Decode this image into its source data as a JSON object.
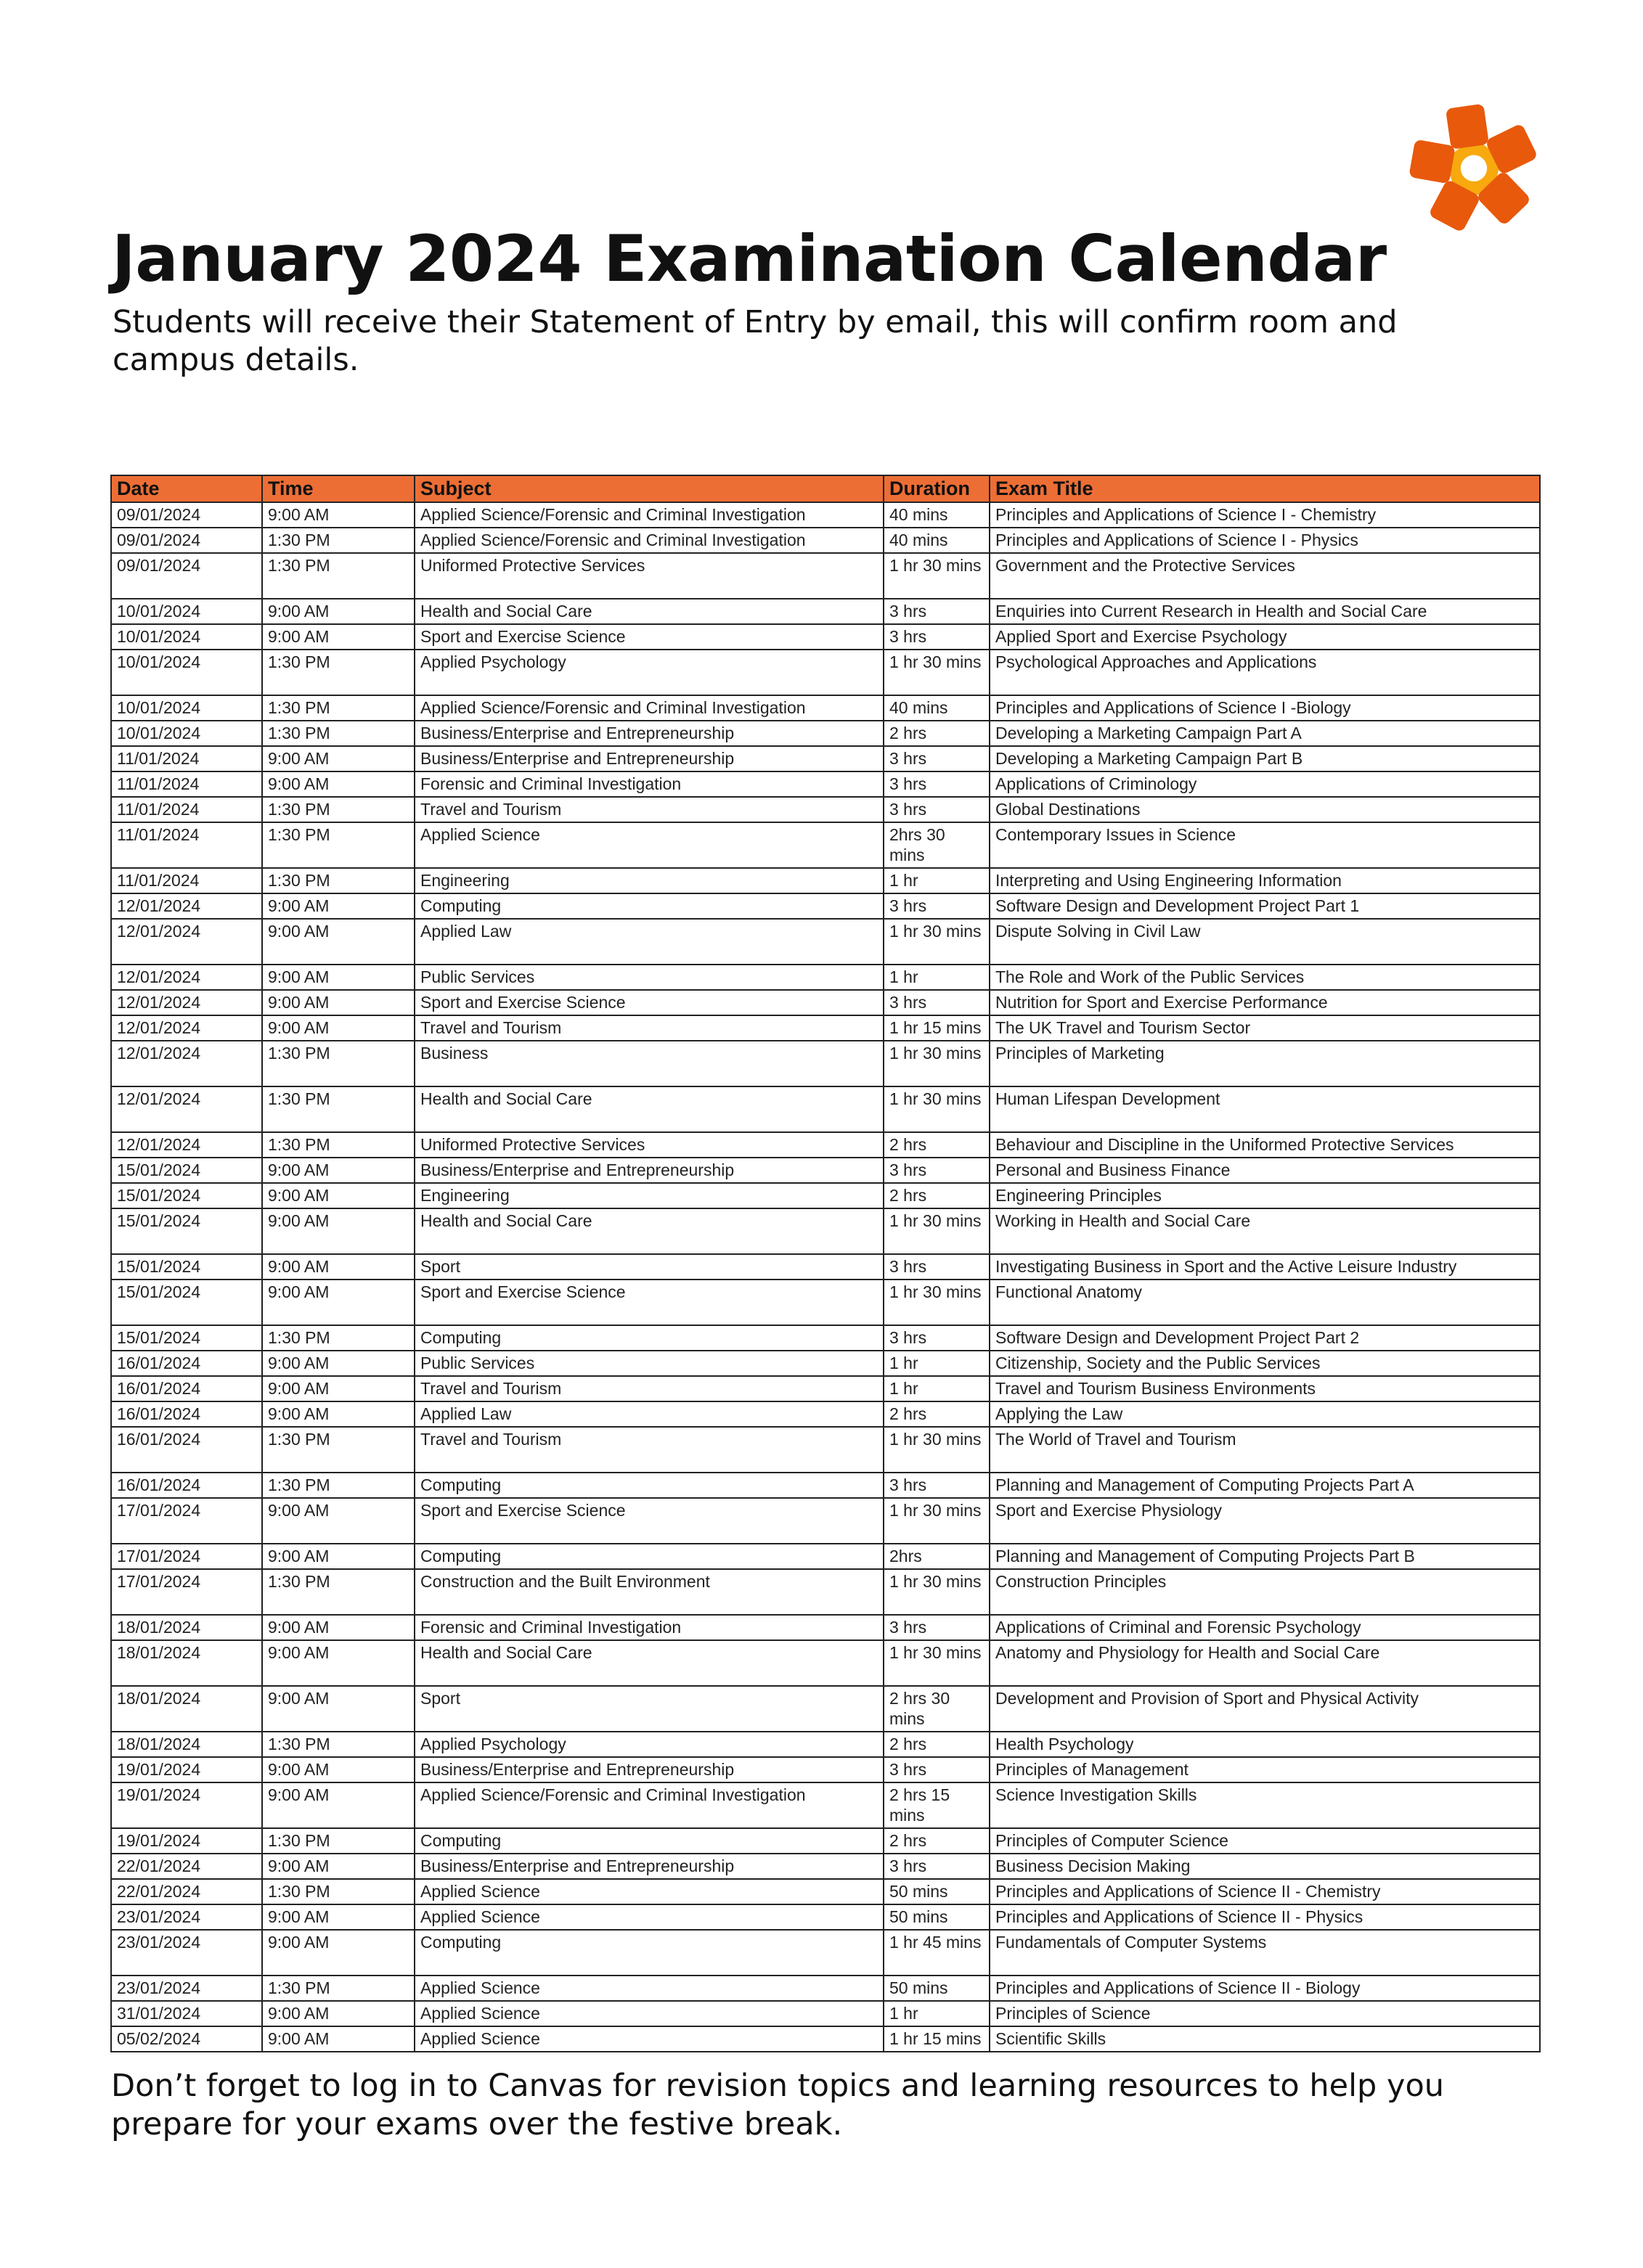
{
  "title": "January 2024 Examination Calendar",
  "subtitle": "Students will receive their Statement of Entry by email, this will confirm room and campus details.",
  "footer": "Don’t forget to log in to Canvas for revision topics and learning resources to help you prepare for your exams over the festive break.",
  "colors": {
    "header": "#ec6e35",
    "logo_petal": "#e8590c",
    "logo_center": "#f7a90e"
  },
  "table": {
    "headers": [
      "Date",
      "Time",
      "Subject",
      "Duration",
      "Exam Title"
    ],
    "rows": [
      [
        "09/01/2024",
        "9:00 AM",
        "Applied Science/Forensic and Criminal Investigation",
        "40 mins",
        "Principles and Applications of Science I - Chemistry"
      ],
      [
        "09/01/2024",
        "1:30 PM",
        "Applied Science/Forensic and Criminal Investigation",
        "40 mins",
        "Principles and Applications of Science I - Physics"
      ],
      [
        "09/01/2024",
        "1:30 PM",
        "Uniformed Protective Services",
        "1 hr 30 mins",
        "Government and the Protective Services"
      ],
      [
        "10/01/2024",
        "9:00 AM",
        "Health and Social Care",
        "3 hrs",
        "Enquiries into Current Research in Health and Social Care"
      ],
      [
        "10/01/2024",
        "9:00 AM",
        "Sport and Exercise Science",
        "3 hrs",
        "Applied Sport and Exercise Psychology"
      ],
      [
        "10/01/2024",
        "1:30 PM",
        "Applied Psychology",
        "1 hr 30 mins",
        "Psychological Approaches and Applications"
      ],
      [
        "10/01/2024",
        "1:30 PM",
        "Applied Science/Forensic and Criminal Investigation",
        "40 mins",
        "Principles and Applications of Science I -Biology"
      ],
      [
        "10/01/2024",
        "1:30 PM",
        "Business/Enterprise and Entrepreneurship",
        "2 hrs",
        "Developing a Marketing Campaign Part A"
      ],
      [
        "11/01/2024",
        "9:00 AM",
        "Business/Enterprise and Entrepreneurship",
        "3 hrs",
        "Developing a Marketing Campaign Part B"
      ],
      [
        "11/01/2024",
        "9:00 AM",
        "Forensic and Criminal Investigation",
        "3 hrs",
        "Applications of Criminology"
      ],
      [
        "11/01/2024",
        "1:30 PM",
        "Travel and Tourism",
        "3 hrs",
        "Global Destinations"
      ],
      [
        "11/01/2024",
        "1:30 PM",
        "Applied Science",
        "2hrs 30 mins",
        "Contemporary Issues in Science"
      ],
      [
        "11/01/2024",
        "1:30 PM",
        "Engineering",
        "1 hr",
        "Interpreting and Using Engineering Information"
      ],
      [
        "12/01/2024",
        "9:00 AM",
        "Computing",
        "3 hrs",
        "Software Design and Development Project Part 1"
      ],
      [
        "12/01/2024",
        "9:00 AM",
        "Applied Law",
        "1 hr 30 mins",
        "Dispute Solving in Civil Law"
      ],
      [
        "12/01/2024",
        "9:00 AM",
        "Public Services",
        "1 hr",
        "The Role and Work of the Public Services"
      ],
      [
        "12/01/2024",
        "9:00 AM",
        "Sport and Exercise Science",
        "3 hrs",
        "Nutrition for Sport and Exercise Performance"
      ],
      [
        "12/01/2024",
        "9:00 AM",
        "Travel and Tourism",
        "1 hr 15 mins",
        "The UK Travel and Tourism Sector"
      ],
      [
        "12/01/2024",
        "1:30 PM",
        "Business",
        "1 hr 30 mins",
        "Principles of Marketing"
      ],
      [
        "12/01/2024",
        "1:30 PM",
        "Health and Social Care",
        "1 hr 30 mins",
        "Human Lifespan Development"
      ],
      [
        "12/01/2024",
        "1:30 PM",
        "Uniformed Protective Services",
        "2 hrs",
        "Behaviour and Discipline in the Uniformed Protective Services"
      ],
      [
        "15/01/2024",
        "9:00 AM",
        "Business/Enterprise and Entrepreneurship",
        "3 hrs",
        "Personal and Business Finance"
      ],
      [
        "15/01/2024",
        "9:00 AM",
        "Engineering",
        "2 hrs",
        "Engineering Principles"
      ],
      [
        "15/01/2024",
        "9:00 AM",
        "Health and Social Care",
        "1 hr 30 mins",
        "Working in Health and Social Care"
      ],
      [
        "15/01/2024",
        "9:00 AM",
        "Sport",
        "3 hrs",
        "Investigating Business in Sport and the Active Leisure Industry"
      ],
      [
        "15/01/2024",
        "9:00 AM",
        "Sport and Exercise Science",
        "1 hr 30 mins",
        "Functional Anatomy"
      ],
      [
        "15/01/2024",
        "1:30 PM",
        "Computing",
        "3 hrs",
        "Software Design and Development Project Part 2"
      ],
      [
        "16/01/2024",
        "9:00 AM",
        "Public Services",
        "1 hr",
        "Citizenship, Society and the Public Services"
      ],
      [
        "16/01/2024",
        "9:00 AM",
        "Travel and Tourism",
        "1 hr",
        "Travel and Tourism Business Environments"
      ],
      [
        "16/01/2024",
        "9:00 AM",
        "Applied Law",
        "2 hrs",
        "Applying the Law"
      ],
      [
        "16/01/2024",
        "1:30 PM",
        "Travel and Tourism",
        "1 hr 30 mins",
        "The World of Travel and Tourism"
      ],
      [
        "16/01/2024",
        "1:30 PM",
        "Computing",
        "3 hrs",
        "Planning and Management of Computing Projects Part A"
      ],
      [
        "17/01/2024",
        "9:00 AM",
        "Sport and Exercise Science",
        "1 hr 30 mins",
        "Sport and Exercise Physiology"
      ],
      [
        "17/01/2024",
        "9:00 AM",
        "Computing",
        "2hrs",
        "Planning and Management of Computing Projects Part B"
      ],
      [
        "17/01/2024",
        "1:30 PM",
        "Construction and the Built Environment",
        "1 hr 30 mins",
        "Construction Principles"
      ],
      [
        "18/01/2024",
        "9:00 AM",
        "Forensic and Criminal Investigation",
        "3 hrs",
        "Applications of Criminal and Forensic Psychology"
      ],
      [
        "18/01/2024",
        "9:00 AM",
        "Health and Social Care",
        "1 hr 30 mins",
        "Anatomy and Physiology for Health and Social Care"
      ],
      [
        "18/01/2024",
        "9:00 AM",
        "Sport",
        "2 hrs 30 mins",
        "Development and Provision of Sport and Physical Activity"
      ],
      [
        "18/01/2024",
        "1:30 PM",
        "Applied Psychology",
        "2 hrs",
        "Health Psychology"
      ],
      [
        "19/01/2024",
        "9:00 AM",
        "Business/Enterprise and Entrepreneurship",
        "3 hrs",
        "Principles of Management"
      ],
      [
        "19/01/2024",
        "9:00 AM",
        "Applied Science/Forensic and Criminal Investigation",
        "2 hrs 15 mins",
        "Science Investigation Skills"
      ],
      [
        "19/01/2024",
        "1:30 PM",
        "Computing",
        "2 hrs",
        "Principles of Computer Science"
      ],
      [
        "22/01/2024",
        "9:00 AM",
        "Business/Enterprise and Entrepreneurship",
        "3 hrs",
        "Business Decision Making"
      ],
      [
        "22/01/2024",
        "1:30 PM",
        "Applied Science",
        "50 mins",
        "Principles and Applications of Science II - Chemistry"
      ],
      [
        "23/01/2024",
        "9:00 AM",
        "Applied Science",
        "50 mins",
        "Principles and Applications of Science II - Physics"
      ],
      [
        "23/01/2024",
        "9:00 AM",
        "Computing",
        "1 hr 45 mins",
        "Fundamentals of Computer Systems"
      ],
      [
        "23/01/2024",
        "1:30 PM",
        "Applied Science",
        "50 mins",
        "Principles and Applications of Science II - Biology"
      ],
      [
        "31/01/2024",
        "9:00 AM",
        "Applied Science",
        "1 hr",
        "Principles of Science"
      ],
      [
        "05/02/2024",
        "9:00 AM",
        "Applied Science",
        "1 hr 15 mins",
        "Scientific Skills"
      ]
    ]
  }
}
